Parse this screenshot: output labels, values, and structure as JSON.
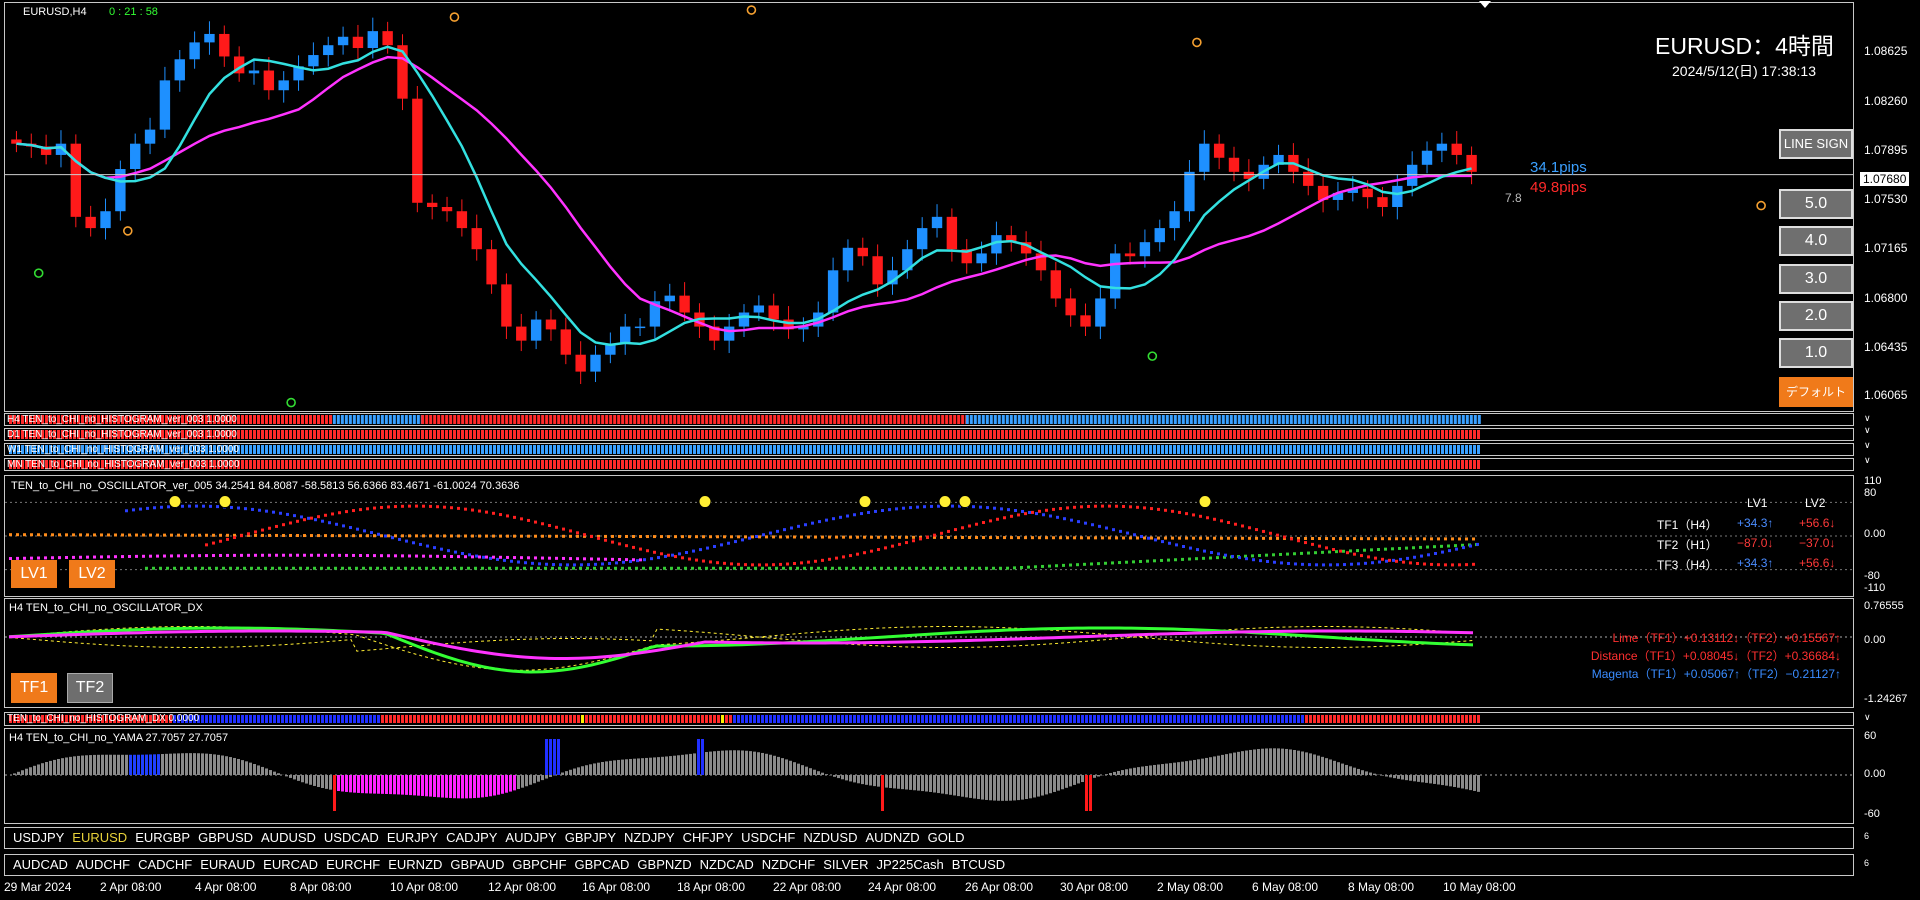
{
  "window": {
    "symbol_tf": "EURUSD,H4",
    "timer": "0 : 21 : 58"
  },
  "header": {
    "title": "EURUSD：4時間",
    "datetime": "2024/5/12(日) 17:38:13"
  },
  "price_axis": [
    "1.08625",
    "1.08260",
    "1.07895",
    "1.07530",
    "1.07165",
    "1.06800",
    "1.06435",
    "1.06065"
  ],
  "current_price": "1.07680",
  "pips": {
    "blue": "34.1pips",
    "red": "49.8pips",
    "small": "7.8"
  },
  "side_buttons": {
    "line_sign": "LINE SIGN",
    "levels": [
      "5.0",
      "4.0",
      "3.0",
      "2.0",
      "1.0"
    ],
    "default": "デフォルト"
  },
  "histograms": [
    {
      "label": "H4 TEN_to_CHI_no_HISTOGRAM_ver_003 1.0000"
    },
    {
      "label": "D1 TEN_to_CHI_no_HISTOGRAM_ver_003 1.0000"
    },
    {
      "label": "W1 TEN_to_CHI_no_HISTOGRAM_ver_003 1.0000"
    },
    {
      "label": "MN TEN_to_CHI_no_HISTOGRAM_ver_003 1.0000"
    }
  ],
  "oscillator": {
    "title": "TEN_to_CHI_no_OSCILLATOR_ver_005 34.2541 84.8087 -58.5813 56.6366 83.4671 -61.0024 70.3636",
    "scale": [
      "80",
      "0.00",
      "-80",
      "-110"
    ],
    "scale_top": "110",
    "buttons": [
      "LV1",
      "LV2"
    ],
    "table_headers": [
      "LV1",
      "LV2"
    ],
    "rows": [
      {
        "name": "TF1（H4）",
        "lv1": "+34.3↑",
        "lv2": "+56.6↓"
      },
      {
        "name": "TF2（H1）",
        "lv1": "−87.0↓",
        "lv2": "−37.0↓"
      },
      {
        "name": "TF3（H4）",
        "lv1": "+34.3↑",
        "lv2": "+56.6↓"
      }
    ]
  },
  "dx": {
    "title": "H4 TEN_to_CHI_no_OSCILLATOR_DX",
    "scale": [
      "0.76555",
      "0.00",
      "-1.24267"
    ],
    "buttons": [
      "TF1",
      "TF2"
    ],
    "lines": [
      "Lime（TF1）+0.13112↓（TF2）+0.15567↑",
      "Distance（TF1）+0.08045↓（TF2）+0.36684↓",
      "Magenta（TF1）+0.05067↑（TF2）−0.21127↑"
    ]
  },
  "hist_dx": {
    "label": "TEN_to_CHI_no_HISTOGRAM_DX 0.0000"
  },
  "yama": {
    "title": "H4  TEN_to_CHI_no_YAMA 27.7057 27.7057",
    "scale": [
      "60",
      "0.00",
      "-60"
    ]
  },
  "symbols_row1": [
    "USDJPY",
    "EURUSD",
    "EURGBP",
    "GBPUSD",
    "AUDUSD",
    "USDCAD",
    "EURJPY",
    "CADJPY",
    "AUDJPY",
    "GBPJPY",
    "NZDJPY",
    "CHFJPY",
    "USDCHF",
    "NZDUSD",
    "AUDNZD",
    "GOLD"
  ],
  "symbols_row2": [
    "AUDCAD",
    "AUDCHF",
    "CADCHF",
    "EURAUD",
    "EURCAD",
    "EURCHF",
    "EURNZD",
    "GBPAUD",
    "GBPCHF",
    "GBPCAD",
    "GBPNZD",
    "NZDCAD",
    "NZDCHF",
    "SILVER",
    "JP225Cash",
    "BTCUSD"
  ],
  "active_symbol": "EURUSD",
  "time_axis": [
    "29 Mar 2024",
    "2 Apr 08:00",
    "4 Apr 08:00",
    "8 Apr 08:00",
    "10 Apr 08:00",
    "12 Apr 08:00",
    "16 Apr 08:00",
    "18 Apr 08:00",
    "22 Apr 08:00",
    "24 Apr 08:00",
    "26 Apr 08:00",
    "30 Apr 08:00",
    "2 May 08:00",
    "6 May 08:00",
    "8 May 08:00",
    "10 May 08:00"
  ],
  "colors": {
    "bull": "#1e90ff",
    "bear": "#ff1a1a",
    "ma_slow": "#ff33ff",
    "ma_fast": "#33e0e0",
    "accent": "#f07a1a",
    "lime": "#33ff33"
  },
  "chart_data": {
    "type": "candlestick",
    "series": [
      {
        "name": "EURUSD,H4",
        "close": [
          1.079,
          1.0788,
          1.0782,
          1.079,
          1.0738,
          1.073,
          1.0742,
          1.0772,
          1.079,
          1.08,
          1.0835,
          1.085,
          1.0862,
          1.0868,
          1.0852,
          1.084,
          1.0842,
          1.0828,
          1.0835,
          1.0845,
          1.0853,
          1.086,
          1.0866,
          1.0858,
          1.087,
          1.086,
          1.0822,
          1.0748,
          1.0745,
          1.0742,
          1.073,
          1.0715,
          1.069,
          1.066,
          1.065,
          1.0665,
          1.0658,
          1.064,
          1.0628,
          1.064,
          1.0648,
          1.066,
          1.066,
          1.0678,
          1.0682,
          1.067,
          1.066,
          1.065,
          1.066,
          1.067,
          1.0675,
          1.0665,
          1.0658,
          1.066,
          1.067,
          1.07,
          1.0716,
          1.071,
          1.069,
          1.07,
          1.0715,
          1.073,
          1.0738,
          1.0715,
          1.0705,
          1.0712,
          1.0725,
          1.072,
          1.0712,
          1.07,
          1.068,
          1.0668,
          1.066,
          1.068,
          1.0712,
          1.071,
          1.072,
          1.073,
          1.0742,
          1.077,
          1.079,
          1.078,
          1.077,
          1.0765,
          1.0775,
          1.0782,
          1.077,
          1.076,
          1.075,
          1.0755,
          1.0758,
          1.0752,
          1.0745,
          1.076,
          1.0775,
          1.0785,
          1.079,
          1.0782,
          1.077
        ]
      }
    ],
    "y_range": [
      1.06,
      1.089
    ],
    "moving_averages": [
      "magenta slow MA",
      "cyan fast MA"
    ]
  }
}
